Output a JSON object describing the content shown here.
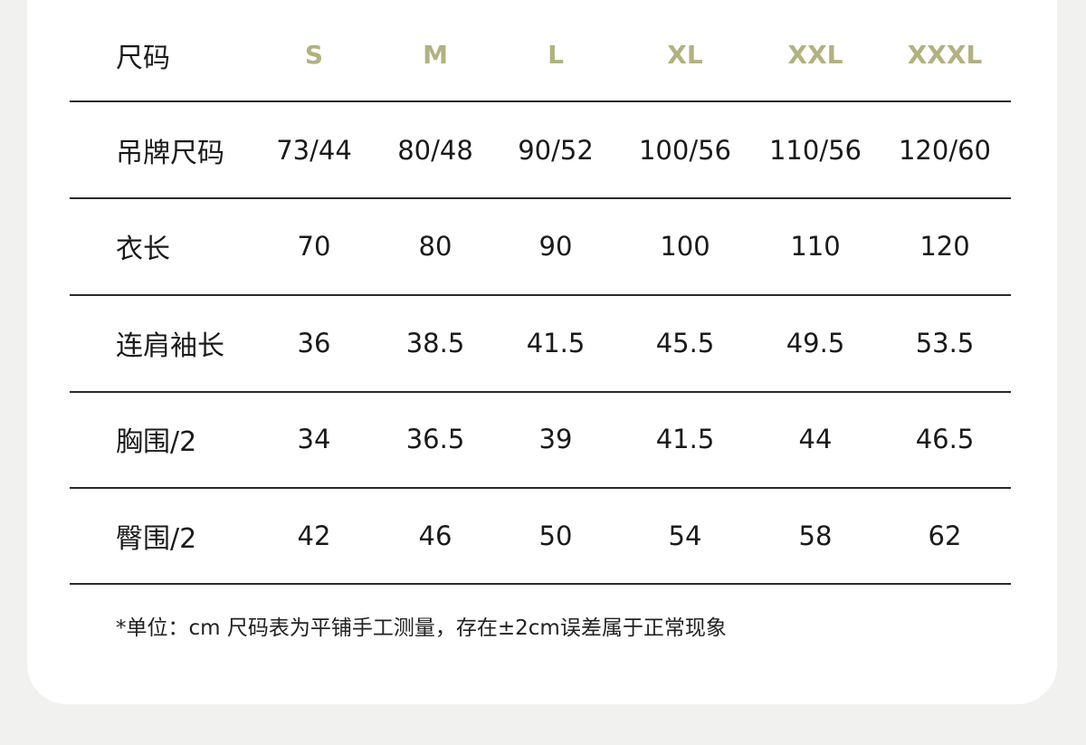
{
  "table": {
    "header_label": "尺码",
    "sizes": [
      "S",
      "M",
      "L",
      "XL",
      "XXL",
      "XXXL"
    ],
    "rows": [
      {
        "label": "吊牌尺码",
        "values": [
          "73/44",
          "80/48",
          "90/52",
          "100/56",
          "110/56",
          "120/60"
        ]
      },
      {
        "label": "衣长",
        "values": [
          "70",
          "80",
          "90",
          "100",
          "110",
          "120"
        ]
      },
      {
        "label": "连肩袖长",
        "values": [
          "36",
          "38.5",
          "41.5",
          "45.5",
          "49.5",
          "53.5"
        ]
      },
      {
        "label": "胸围/2",
        "values": [
          "34",
          "36.5",
          "39",
          "41.5",
          "44",
          "46.5"
        ]
      },
      {
        "label": "臀围/2",
        "values": [
          "42",
          "46",
          "50",
          "54",
          "58",
          "62"
        ]
      }
    ]
  },
  "note": "*单位：cm 尺码表为平铺手工测量，存在±2cm误差属于正常现象",
  "colors": {
    "size_header": "#b2b17f",
    "background": "#f1f1ef",
    "card": "#ffffff"
  }
}
